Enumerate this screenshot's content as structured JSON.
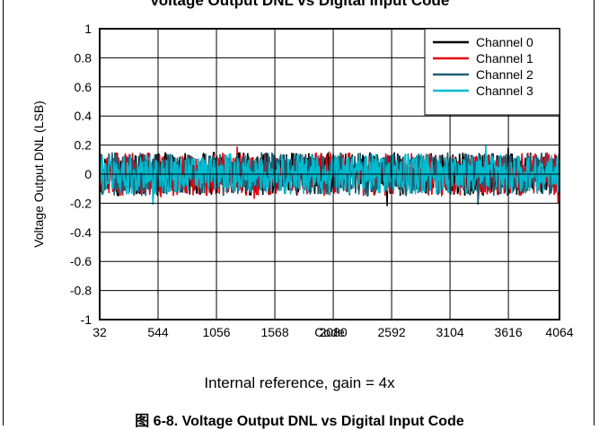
{
  "header": {
    "title": "Voltage Output DNL vs Digital Input Code"
  },
  "footer": {
    "subtitle": "Internal reference, gain = 4x",
    "caption": "图 6-8. Voltage Output DNL vs Digital Input Code"
  },
  "chart_data": {
    "type": "line",
    "title": "Voltage Output DNL vs Digital Input Code",
    "xlabel": "Code",
    "ylabel": "Voltage Output DNL (LSB)",
    "xlim": [
      32,
      4064
    ],
    "ylim": [
      -1,
      1
    ],
    "xticks": [
      32,
      544,
      1056,
      1568,
      2080,
      2592,
      3104,
      3616,
      4064
    ],
    "yticks": [
      1,
      0.8,
      0.6,
      0.4,
      0.2,
      0,
      -0.2,
      -0.4,
      -0.6,
      -0.8,
      -1
    ],
    "ytick_labels": [
      "1",
      "0.8",
      "0.6",
      "0.4",
      "0.2",
      "0",
      "-0.2",
      "-0.4",
      "-0.6",
      "-0.8",
      "-1"
    ],
    "grid": true,
    "legend_position": "top-right",
    "series": [
      {
        "name": "Channel 0",
        "color": "#000000",
        "noise_band": [
          -0.15,
          0.15
        ],
        "peaks": [
          {
            "x": 2550,
            "y": -0.22
          },
          {
            "x": 3616,
            "y": 0.18
          }
        ]
      },
      {
        "name": "Channel 1",
        "color": "#e3000f",
        "noise_band": [
          -0.15,
          0.15
        ],
        "peaks": [
          {
            "x": 1240,
            "y": 0.19
          },
          {
            "x": 1390,
            "y": -0.17
          },
          {
            "x": 4050,
            "y": -0.2
          }
        ]
      },
      {
        "name": "Channel 2",
        "color": "#1f5f73",
        "noise_band": [
          -0.15,
          0.15
        ],
        "peaks": [
          {
            "x": 3350,
            "y": -0.21
          }
        ]
      },
      {
        "name": "Channel 3",
        "color": "#00bcd0",
        "noise_band": [
          -0.14,
          0.14
        ],
        "peaks": [
          {
            "x": 500,
            "y": -0.21
          },
          {
            "x": 3420,
            "y": 0.2
          }
        ]
      }
    ]
  }
}
